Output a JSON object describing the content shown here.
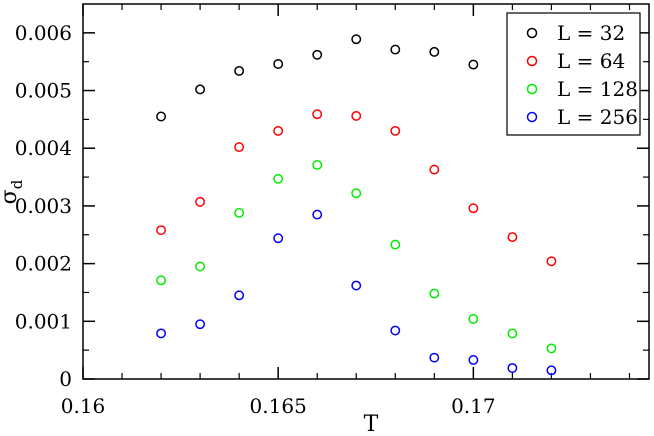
{
  "chart_data": {
    "type": "scatter",
    "title": "",
    "xlabel": "T",
    "ylabel": "σ",
    "ylabel_subscript": "d",
    "xlim": [
      0.16,
      0.1745
    ],
    "ylim": [
      0,
      0.0065
    ],
    "x_ticks": [
      0.16,
      0.165,
      0.17
    ],
    "x_tick_labels": [
      "0.16",
      "0.165",
      "0.17"
    ],
    "y_ticks": [
      0,
      0.001,
      0.002,
      0.003,
      0.004,
      0.005,
      0.006
    ],
    "y_tick_labels": [
      "0",
      "0.001",
      "0.002",
      "0.003",
      "0.004",
      "0.005",
      "0.006"
    ],
    "grid": false,
    "legend_position": "top-right",
    "series": [
      {
        "name": "L = 32",
        "color": "#000000",
        "x": [
          0.162,
          0.163,
          0.164,
          0.165,
          0.166,
          0.167,
          0.168,
          0.169,
          0.17
        ],
        "y": [
          0.00455,
          0.00502,
          0.00534,
          0.00546,
          0.00562,
          0.00589,
          0.00571,
          0.00567,
          0.00545
        ]
      },
      {
        "name": "L = 64",
        "color": "#ff0000",
        "x": [
          0.162,
          0.163,
          0.164,
          0.165,
          0.166,
          0.167,
          0.168,
          0.169,
          0.17,
          0.171,
          0.172
        ],
        "y": [
          0.00258,
          0.00307,
          0.00402,
          0.0043,
          0.00459,
          0.00456,
          0.0043,
          0.00363,
          0.00296,
          0.00246,
          0.00204
        ]
      },
      {
        "name": "L = 128",
        "color": "#00ee00",
        "x": [
          0.162,
          0.163,
          0.164,
          0.165,
          0.166,
          0.167,
          0.168,
          0.169,
          0.17,
          0.171,
          0.172
        ],
        "y": [
          0.00171,
          0.00195,
          0.00288,
          0.00347,
          0.00371,
          0.00322,
          0.00233,
          0.00148,
          0.00104,
          0.00079,
          0.00053
        ]
      },
      {
        "name": "L = 256",
        "color": "#0000ff",
        "x": [
          0.162,
          0.163,
          0.164,
          0.165,
          0.166,
          0.167,
          0.168,
          0.169,
          0.17,
          0.171,
          0.172
        ],
        "y": [
          0.00079,
          0.00095,
          0.00145,
          0.00244,
          0.00285,
          0.00162,
          0.00084,
          0.00037,
          0.00033,
          0.00019,
          0.00015
        ]
      }
    ]
  }
}
